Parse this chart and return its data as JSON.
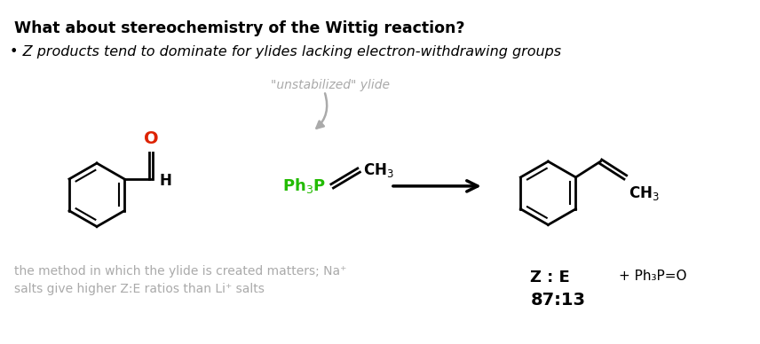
{
  "title": "What about stereochemistry of the Wittig reaction?",
  "bullet": "• Z products tend to dominate for ylides lacking electron-withdrawing groups",
  "unstabilized": "\"unstabilized\" ylide",
  "bottom_note_line1": "the method in which the ylide is created matters; Na⁺",
  "bottom_note_line2": "salts give higher Z:E ratios than Li⁺ salts",
  "ze_label": "Z : E",
  "ratio": "87:13",
  "byproduct": "+ Ph₃P=O",
  "bg_color": "#ffffff",
  "text_color": "#000000",
  "gray_color": "#aaaaaa",
  "green_color": "#22bb00",
  "red_color": "#dd2200",
  "title_fontsize": 12.5,
  "bullet_fontsize": 11.5,
  "note_fontsize": 10
}
